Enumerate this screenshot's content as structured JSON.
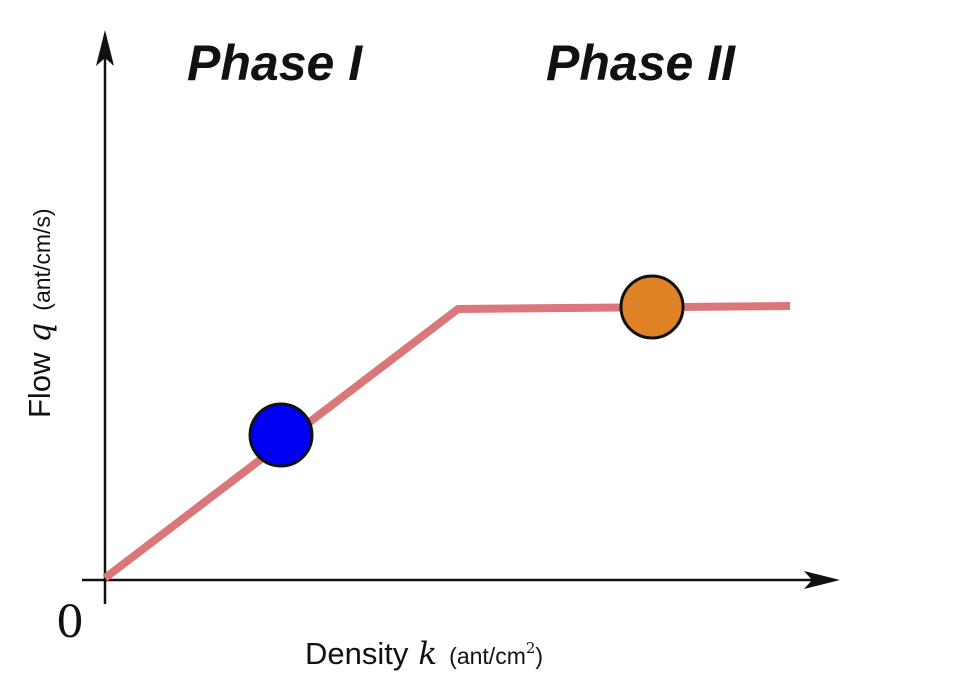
{
  "titles": {
    "phase_1": "Phase I",
    "phase_2": "Phase II"
  },
  "axes": {
    "origin": "0",
    "x_word": "Density",
    "x_var": "k",
    "x_unit": "(ant/cm",
    "x_unit_sup": "2",
    "x_unit_close": ")",
    "y_word": "Flow",
    "y_var": "q",
    "y_unit": "(ant/cm/s)"
  },
  "colors": {
    "curve": "#d9777a",
    "axis": "#111111",
    "marker_phase_1": "#0000f5",
    "marker_phase_2": "#e08326",
    "marker_outline": "#111111"
  },
  "icons": [
    "x-axis-arrow-icon",
    "y-axis-arrow-icon"
  ]
}
